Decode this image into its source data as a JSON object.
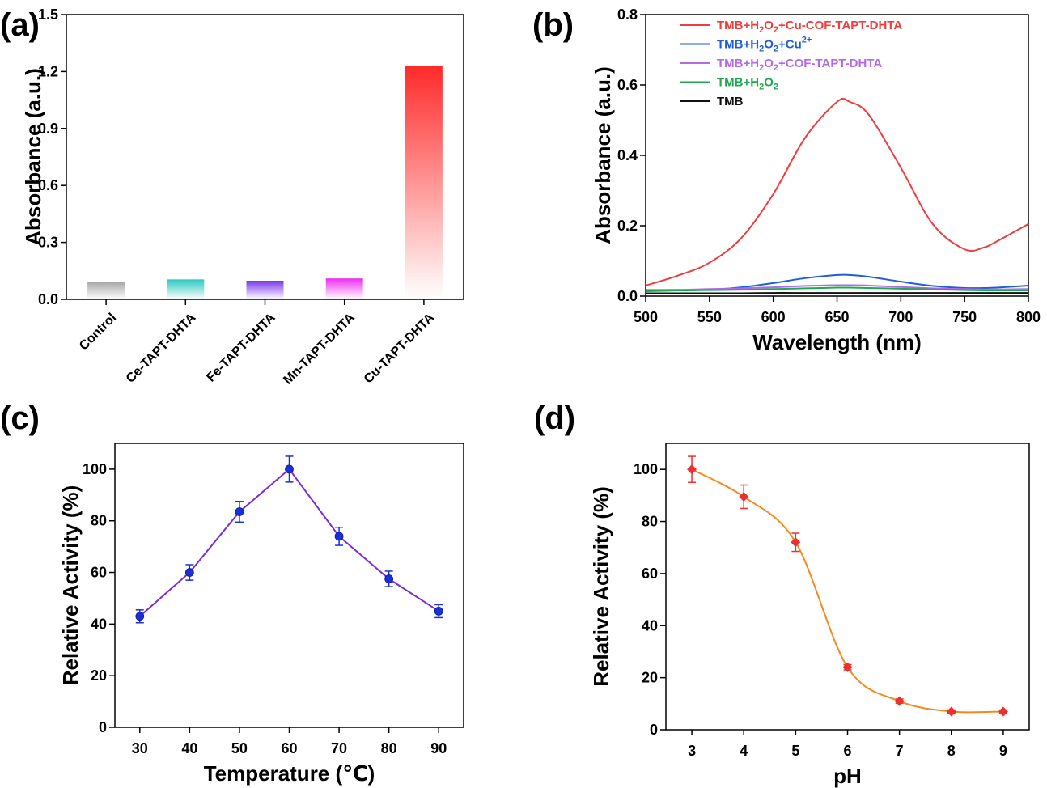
{
  "chart_data": [
    {
      "panel": "(a)",
      "type": "bar",
      "xlabel": "",
      "ylabel": "Absorbance (a.u.)",
      "ylim": [
        0,
        1.5
      ],
      "yticks": [
        "0.0",
        "0.3",
        "0.6",
        "0.9",
        "1.2",
        "1.5"
      ],
      "categories": [
        "Control",
        "Ce-TAPT-DHTA",
        "Fe-TAPT-DHTA",
        "Mn-TAPT-DHTA",
        "Cu-TAPT-DHTA"
      ],
      "values": [
        0.09,
        0.105,
        0.098,
        0.11,
        1.23
      ],
      "colors": [
        "#a8a8a8",
        "#2ac9c0",
        "#7a36e8",
        "#ef2cef",
        "#ff2a2a"
      ],
      "grid": false
    },
    {
      "panel": "(b)",
      "type": "line",
      "xlabel": "Wavelength (nm)",
      "ylabel": "Absorbance (a.u.)",
      "xlim": [
        500,
        800
      ],
      "ylim": [
        0,
        0.8
      ],
      "xticks": [
        "500",
        "550",
        "600",
        "650",
        "700",
        "750",
        "800"
      ],
      "yticks": [
        "0.0",
        "0.2",
        "0.4",
        "0.6",
        "0.8"
      ],
      "legend_position": "top-left",
      "legend_labels": [
        {
          "prefix": "TMB+H",
          "sub": "2",
          "mid": "O",
          "sub2": "2",
          "suffix": "+Cu-COF-TAPT-DHTA"
        },
        {
          "prefix": "TMB+H",
          "sub": "2",
          "mid": "O",
          "sub2": "2",
          "suffix": "+Cu",
          "sup": "2+"
        },
        {
          "prefix": "TMB+H",
          "sub": "2",
          "mid": "O",
          "sub2": "2",
          "suffix": "+COF-TAPT-DHTA"
        },
        {
          "prefix": "TMB+H",
          "sub": "2",
          "mid": "O",
          "sub2": "2",
          "suffix": ""
        },
        {
          "prefix": "TMB",
          "sub": "",
          "mid": "",
          "sub2": "",
          "suffix": ""
        }
      ],
      "x": [
        500,
        525,
        550,
        575,
        600,
        625,
        650,
        660,
        675,
        700,
        725,
        750,
        765,
        775,
        800
      ],
      "series": [
        {
          "color": "#f03c3c",
          "values": [
            0.03,
            0.058,
            0.095,
            0.165,
            0.29,
            0.45,
            0.552,
            0.552,
            0.515,
            0.365,
            0.205,
            0.133,
            0.138,
            0.155,
            0.205
          ]
        },
        {
          "color": "#1f5fd6",
          "values": [
            0.014,
            0.016,
            0.018,
            0.025,
            0.037,
            0.051,
            0.06,
            0.06,
            0.055,
            0.041,
            0.029,
            0.023,
            0.023,
            0.024,
            0.03
          ]
        },
        {
          "color": "#b36ae6",
          "values": [
            0.018,
            0.018,
            0.02,
            0.022,
            0.025,
            0.029,
            0.031,
            0.031,
            0.03,
            0.026,
            0.022,
            0.02,
            0.019,
            0.019,
            0.02
          ]
        },
        {
          "color": "#1fa84f",
          "values": [
            0.016,
            0.016,
            0.017,
            0.018,
            0.02,
            0.022,
            0.024,
            0.024,
            0.023,
            0.021,
            0.019,
            0.017,
            0.016,
            0.016,
            0.016
          ]
        },
        {
          "color": "#111111",
          "values": [
            0.008,
            0.008,
            0.008,
            0.008,
            0.009,
            0.009,
            0.009,
            0.009,
            0.009,
            0.009,
            0.009,
            0.009,
            0.009,
            0.009,
            0.009
          ]
        }
      ],
      "grid": false
    },
    {
      "panel": "(c)",
      "type": "line",
      "xlabel": "Temperature (℃)",
      "ylabel": "Relative Activity (%)",
      "xlim": [
        25,
        95
      ],
      "ylim": [
        0,
        110
      ],
      "xticks": [
        "30",
        "40",
        "50",
        "60",
        "70",
        "80",
        "90"
      ],
      "yticks": [
        "0",
        "20",
        "40",
        "60",
        "80",
        "100"
      ],
      "x": [
        30,
        40,
        50,
        60,
        70,
        80,
        90
      ],
      "series": [
        {
          "color": "#7a2be0",
          "marker_color": "#1a2fd6",
          "values": [
            43,
            60,
            83.5,
            100,
            74,
            57.5,
            45
          ],
          "errors": [
            2.5,
            3,
            4,
            5,
            3.5,
            3,
            2.5
          ]
        }
      ],
      "grid": false
    },
    {
      "panel": "(d)",
      "type": "line",
      "xlabel": "pH",
      "ylabel": "Relative Activity (%)",
      "xlim": [
        2.5,
        9.5
      ],
      "ylim": [
        0,
        110
      ],
      "xticks": [
        "3",
        "4",
        "5",
        "6",
        "7",
        "8",
        "9"
      ],
      "yticks": [
        "0",
        "20",
        "40",
        "60",
        "80",
        "100"
      ],
      "x": [
        3,
        4,
        5,
        6,
        7,
        8,
        9
      ],
      "series": [
        {
          "color": "#f5891f",
          "marker_color": "#ef2e2e",
          "values": [
            100,
            89.5,
            72,
            24,
            11,
            7,
            7
          ],
          "errors": [
            5,
            4.5,
            3.5,
            1,
            0.8,
            0.6,
            0.6
          ]
        }
      ],
      "grid": false
    }
  ]
}
